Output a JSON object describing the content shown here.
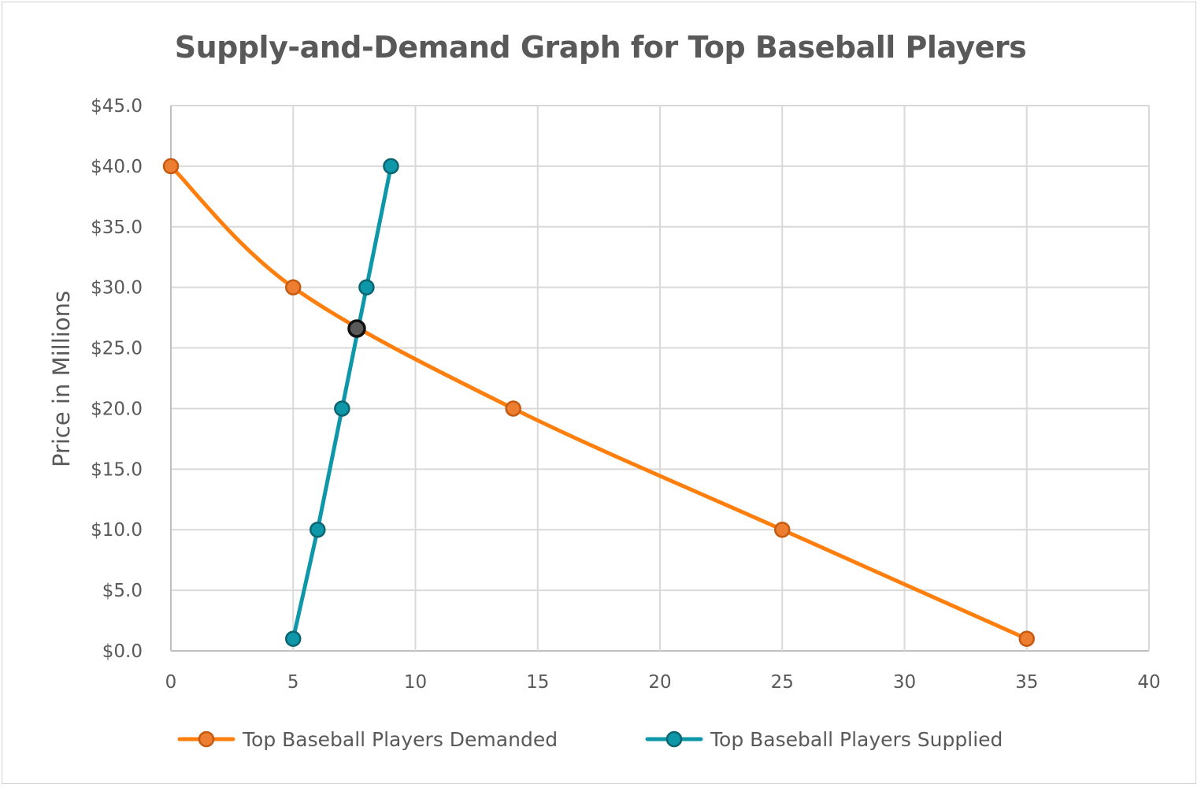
{
  "chart_data": {
    "type": "line",
    "title": "Supply-and-Demand Graph for Top Baseball Players",
    "xlabel": "",
    "ylabel": "Price in Millions",
    "xlim": [
      0,
      40
    ],
    "ylim": [
      0,
      45
    ],
    "x_ticks": [
      "0",
      "5",
      "10",
      "15",
      "20",
      "25",
      "30",
      "35",
      "40"
    ],
    "x_tick_values": [
      0,
      5,
      10,
      15,
      20,
      25,
      30,
      35,
      40
    ],
    "y_ticks": [
      "$0.0",
      "$5.0",
      "$10.0",
      "$15.0",
      "$20.0",
      "$25.0",
      "$30.0",
      "$35.0",
      "$40.0",
      "$45.0"
    ],
    "y_tick_values": [
      0,
      5,
      10,
      15,
      20,
      25,
      30,
      35,
      40,
      45
    ],
    "grid": true,
    "legend_position": "bottom",
    "series": [
      {
        "name": "Top Baseball Players Demanded",
        "color": "#ff7f0e",
        "marker_fill": "#ed7d31",
        "marker_stroke": "#c55a11",
        "smooth": true,
        "points": [
          [
            0,
            40
          ],
          [
            5,
            30
          ],
          [
            14,
            20
          ],
          [
            25,
            10
          ],
          [
            35,
            1
          ]
        ]
      },
      {
        "name": "Top Baseball Players Supplied",
        "color": "#0e97a8",
        "marker_fill": "#0e97a8",
        "marker_stroke": "#0b6570",
        "smooth": false,
        "points": [
          [
            5,
            1
          ],
          [
            6,
            10
          ],
          [
            7,
            20
          ],
          [
            8,
            30
          ],
          [
            9,
            40
          ]
        ]
      }
    ],
    "annotations": [
      {
        "type": "equilibrium-point",
        "x": 7.6,
        "y": 26.6,
        "fill": "#595959",
        "stroke": "#111111"
      }
    ]
  }
}
